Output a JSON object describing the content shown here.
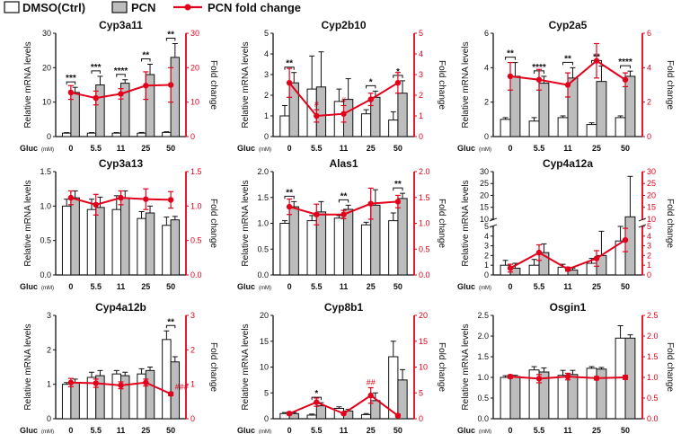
{
  "legend": {
    "dmso": "DMSO(Ctrl)",
    "pcn": "PCN",
    "fold": "PCN fold change"
  },
  "colors": {
    "dmso_fill": "#ffffff",
    "pcn_fill": "#bdbdbd",
    "fold_line": "#e3001b",
    "axis": "#111111"
  },
  "common": {
    "ylabel_left": "Relative mRNA levels",
    "ylabel_right": "Fold change",
    "xlabel": "Gluc",
    "xunit": "(mM)"
  },
  "chart_data": [
    {
      "type": "bar",
      "title": "Cyp3a11",
      "categories": [
        "0",
        "5.5",
        "11",
        "25",
        "50"
      ],
      "ylim": [
        0,
        30
      ],
      "yticks": [
        "0",
        "10",
        "20",
        "30"
      ],
      "y2lim": [
        0,
        30
      ],
      "y2ticks": [
        "0",
        "10",
        "20",
        "30"
      ],
      "series": [
        {
          "name": "DMSO(Ctrl)",
          "values": [
            1,
            1,
            1,
            1,
            1.2
          ],
          "err": [
            0.15,
            0.15,
            0.15,
            0.2,
            0.2
          ]
        },
        {
          "name": "PCN",
          "values": [
            12.8,
            15,
            15.5,
            18,
            23
          ],
          "err": [
            1.5,
            2.5,
            1,
            3,
            4
          ]
        },
        {
          "name": "PCN fold change",
          "values": [
            12.8,
            11.2,
            12.4,
            14.8,
            15
          ],
          "err": [
            2,
            2,
            1.5,
            4,
            5
          ]
        }
      ],
      "sig": [
        "***",
        "***",
        "****",
        "**",
        "**"
      ],
      "hash": [
        "",
        "",
        "",
        "",
        ""
      ]
    },
    {
      "type": "bar",
      "title": "Cyp2b10",
      "categories": [
        "0",
        "5.5",
        "11",
        "25",
        "50"
      ],
      "ylim": [
        0,
        5
      ],
      "yticks": [
        "0",
        "1",
        "2",
        "3",
        "4",
        "5"
      ],
      "y2lim": [
        0,
        5
      ],
      "y2ticks": [
        "0",
        "1",
        "2",
        "3",
        "4",
        "5"
      ],
      "series": [
        {
          "name": "DMSO(Ctrl)",
          "values": [
            1,
            2.3,
            1.7,
            1.1,
            0.8
          ],
          "err": [
            0.5,
            1.6,
            0.6,
            0.2,
            0.4
          ]
        },
        {
          "name": "PCN",
          "values": [
            2.6,
            2.4,
            1.8,
            1.9,
            2.1
          ],
          "err": [
            0.5,
            1.7,
            1,
            0.3,
            0.6
          ]
        },
        {
          "name": "PCN fold change",
          "values": [
            2.6,
            1,
            1.1,
            1.8,
            2.6
          ],
          "err": [
            0.7,
            0.3,
            0.4,
            0.3,
            0.5
          ]
        }
      ],
      "sig": [
        "**",
        "",
        "",
        "*",
        "*"
      ],
      "hash": [
        "",
        "#",
        "#",
        "",
        ""
      ]
    },
    {
      "type": "bar",
      "title": "Cyp2a5",
      "categories": [
        "0",
        "5.5",
        "11",
        "25",
        "50"
      ],
      "ylim": [
        0,
        6
      ],
      "yticks": [
        "0",
        "2",
        "4",
        "6"
      ],
      "y2lim": [
        0,
        6
      ],
      "y2ticks": [
        "0",
        "2",
        "4",
        "6"
      ],
      "series": [
        {
          "name": "DMSO(Ctrl)",
          "values": [
            1,
            0.9,
            1.1,
            0.7,
            1.1
          ],
          "err": [
            0.1,
            0.2,
            0.1,
            0.1,
            0.1
          ]
        },
        {
          "name": "PCN",
          "values": [
            3.5,
            3.1,
            3.4,
            3.2,
            3.5
          ],
          "err": [
            0.8,
            0.4,
            0.6,
            0.9,
            0.3
          ]
        },
        {
          "name": "PCN fold change",
          "values": [
            3.5,
            3.3,
            3,
            4.4,
            3.3
          ],
          "err": [
            0.8,
            0.6,
            0.7,
            1,
            0.4
          ]
        }
      ],
      "sig": [
        "**",
        "****",
        "**",
        "**",
        "****"
      ],
      "hash": [
        "",
        "",
        "",
        "",
        ""
      ]
    },
    {
      "type": "bar",
      "title": "Cyp3a13",
      "categories": [
        "0",
        "5.5",
        "11",
        "25",
        "50"
      ],
      "ylim": [
        0,
        1.5
      ],
      "yticks": [
        "0.0",
        "0.5",
        "1.0",
        "1.5"
      ],
      "y2lim": [
        0,
        1.5
      ],
      "y2ticks": [
        "0.0",
        "0.5",
        "1.0",
        "1.5"
      ],
      "series": [
        {
          "name": "DMSO(Ctrl)",
          "values": [
            1,
            0.95,
            0.95,
            0.82,
            0.72
          ],
          "err": [
            0.1,
            0.15,
            0.2,
            0.1,
            0.12
          ]
        },
        {
          "name": "PCN",
          "values": [
            1.12,
            0.98,
            1.12,
            0.9,
            0.8
          ],
          "err": [
            0.1,
            0.15,
            0.1,
            0.1,
            0.05
          ]
        },
        {
          "name": "PCN fold change",
          "values": [
            1.12,
            1.02,
            1.12,
            1.1,
            1.09
          ],
          "err": [
            0.1,
            0.15,
            0.1,
            0.15,
            0.12
          ]
        }
      ],
      "sig": [
        "",
        "",
        "",
        "",
        ""
      ],
      "hash": [
        "",
        "",
        "",
        "",
        ""
      ]
    },
    {
      "type": "bar",
      "title": "Alas1",
      "categories": [
        "0",
        "5.5",
        "11",
        "25",
        "50"
      ],
      "ylim": [
        0,
        2
      ],
      "yticks": [
        "0.0",
        "0.5",
        "1.0",
        "1.5",
        "2.0"
      ],
      "y2lim": [
        0,
        2
      ],
      "y2ticks": [
        "0.0",
        "0.5",
        "1.0",
        "1.5",
        "2.0"
      ],
      "series": [
        {
          "name": "DMSO(Ctrl)",
          "values": [
            1,
            1.05,
            1.1,
            0.97,
            1.05
          ],
          "err": [
            0.05,
            0.1,
            0.05,
            0.05,
            0.15
          ]
        },
        {
          "name": "PCN",
          "values": [
            1.32,
            1.22,
            1.27,
            1.35,
            1.48
          ],
          "err": [
            0.1,
            0.2,
            0.08,
            0.3,
            0.1
          ]
        },
        {
          "name": "PCN fold change",
          "values": [
            1.32,
            1.17,
            1.17,
            1.38,
            1.42
          ],
          "err": [
            0.15,
            0.2,
            0.08,
            0.3,
            0.12
          ]
        }
      ],
      "sig": [
        "**",
        "",
        "**",
        "",
        "**"
      ],
      "hash": [
        "",
        "",
        "",
        "",
        ""
      ]
    },
    {
      "type": "bar",
      "title": "Cyp4a12a",
      "categories": [
        "0",
        "5.5",
        "11",
        "25",
        "50"
      ],
      "ylim": [
        0,
        30
      ],
      "yticks": [
        "0",
        "1",
        "2",
        "3",
        "4",
        "5",
        "10",
        "15",
        "20",
        "25",
        "30"
      ],
      "y2lim": [
        0,
        30
      ],
      "y2ticks": [
        "0",
        "1",
        "2",
        "3",
        "4",
        "5",
        "10",
        "15",
        "20",
        "25",
        "30"
      ],
      "broken_axis": {
        "lower": [
          0,
          5
        ],
        "upper": [
          10,
          30
        ]
      },
      "series": [
        {
          "name": "DMSO(Ctrl)",
          "values": [
            1,
            1,
            0.8,
            1.2,
            3.5
          ],
          "err": [
            0.5,
            0.6,
            0.3,
            0.5,
            2
          ]
        },
        {
          "name": "PCN",
          "values": [
            0.7,
            2.3,
            0.5,
            2,
            11
          ],
          "err": [
            0.5,
            0.9,
            0.2,
            2.5,
            17
          ]
        },
        {
          "name": "PCN fold change",
          "values": [
            0.7,
            2.3,
            0.6,
            1.7,
            3.6
          ],
          "err": [
            0.4,
            0.8,
            0.2,
            0.8,
            1.2
          ]
        }
      ],
      "sig": [
        "",
        "",
        "",
        "",
        ""
      ],
      "hash": [
        "",
        "",
        "",
        "",
        ""
      ]
    },
    {
      "type": "bar",
      "title": "Cyp4a12b",
      "categories": [
        "0",
        "5.5",
        "11",
        "25",
        "50"
      ],
      "ylim": [
        0,
        3
      ],
      "yticks": [
        "0",
        "1",
        "2",
        "3"
      ],
      "y2lim": [
        0,
        3
      ],
      "y2ticks": [
        "0",
        "1",
        "2",
        "3"
      ],
      "series": [
        {
          "name": "DMSO(Ctrl)",
          "values": [
            1,
            1.2,
            1.3,
            1.3,
            2.3
          ],
          "err": [
            0.05,
            0.15,
            0.1,
            0.15,
            0.25
          ]
        },
        {
          "name": "PCN",
          "values": [
            1.05,
            1.25,
            1.25,
            1.4,
            1.65
          ],
          "err": [
            0.1,
            0.15,
            0.1,
            0.1,
            0.15
          ]
        },
        {
          "name": "PCN fold change",
          "values": [
            1.05,
            1.03,
            0.97,
            1.05,
            0.72
          ],
          "err": [
            0.12,
            0.12,
            0.1,
            0.1,
            0.05
          ]
        }
      ],
      "sig": [
        "",
        "",
        "",
        "",
        "**"
      ],
      "hash": [
        "",
        "",
        "",
        "",
        "###"
      ]
    },
    {
      "type": "bar",
      "title": "Cyp8b1",
      "categories": [
        "0",
        "5.5",
        "11",
        "25",
        "50"
      ],
      "ylim": [
        0,
        20
      ],
      "yticks": [
        "0",
        "5",
        "10",
        "15",
        "20"
      ],
      "y2lim": [
        0,
        20
      ],
      "y2ticks": [
        "0",
        "5",
        "10",
        "15",
        "20"
      ],
      "series": [
        {
          "name": "DMSO(Ctrl)",
          "values": [
            1,
            0.7,
            2,
            0.8,
            12
          ],
          "err": [
            0.2,
            0.2,
            0.3,
            0.2,
            3
          ]
        },
        {
          "name": "PCN",
          "values": [
            1,
            2.5,
            1.5,
            3.5,
            7.5
          ],
          "err": [
            0.2,
            0.6,
            0.3,
            1.5,
            2
          ]
        },
        {
          "name": "PCN fold change",
          "values": [
            1,
            3.2,
            1,
            4.5,
            0.6
          ],
          "err": [
            0.3,
            0.8,
            0.2,
            1.5,
            0.3
          ]
        }
      ],
      "sig": [
        "",
        "*",
        "",
        "",
        ""
      ],
      "hash": [
        "",
        "",
        "",
        "##",
        ""
      ]
    },
    {
      "type": "bar",
      "title": "Osgin1",
      "categories": [
        "0",
        "5.5",
        "11",
        "25",
        "50"
      ],
      "ylim": [
        0,
        2.5
      ],
      "yticks": [
        "0.0",
        "0.5",
        "1.0",
        "1.5",
        "2.0",
        "2.5"
      ],
      "y2lim": [
        0,
        2.5
      ],
      "y2ticks": [
        "0.0",
        "0.5",
        "1.0",
        "1.5",
        "2.0",
        "2.5"
      ],
      "series": [
        {
          "name": "DMSO(Ctrl)",
          "values": [
            1,
            1.18,
            1.05,
            1.22,
            1.95
          ],
          "err": [
            0.04,
            0.08,
            0.12,
            0.04,
            0.3
          ]
        },
        {
          "name": "PCN",
          "values": [
            1.02,
            1.13,
            1.07,
            1.2,
            1.95
          ],
          "err": [
            0.03,
            0.1,
            0.1,
            0.04,
            0.08
          ]
        },
        {
          "name": "PCN fold change",
          "values": [
            1.02,
            0.97,
            1.02,
            0.98,
            1
          ],
          "err": [
            0.04,
            0.1,
            0.08,
            0.04,
            0.05
          ]
        }
      ],
      "sig": [
        "",
        "",
        "",
        "",
        ""
      ],
      "hash": [
        "",
        "",
        "",
        "",
        ""
      ]
    }
  ]
}
